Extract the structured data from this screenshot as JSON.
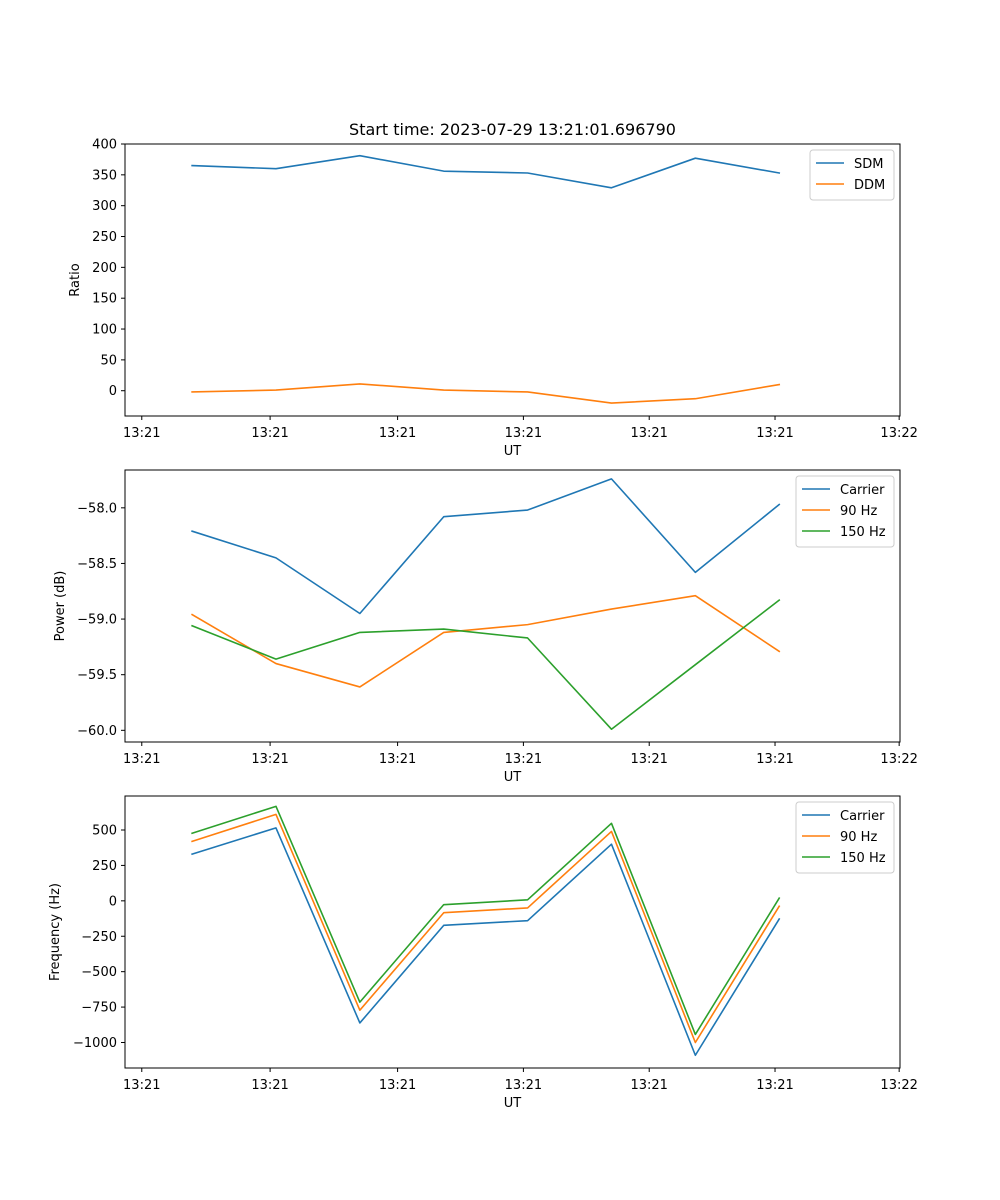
{
  "chart_data": [
    {
      "type": "line",
      "title": "Start time: 2023-07-29 13:21:01.696790",
      "xlabel": "UT",
      "ylabel": "Ratio",
      "x": [
        1,
        2,
        3,
        4,
        5,
        6,
        7,
        8
      ],
      "xlim": [
        0.2,
        9.44
      ],
      "x_ticks": [
        0.4,
        1.93,
        3.45,
        4.95,
        6.45,
        7.95,
        9.43
      ],
      "x_tick_labels": [
        "13:21",
        "13:21",
        "13:21",
        "13:21",
        "13:21",
        "13:21",
        "13:22"
      ],
      "ylim": [
        -41,
        400
      ],
      "y_ticks": [
        0,
        50,
        100,
        150,
        200,
        250,
        300,
        350,
        400
      ],
      "y_tick_labels": [
        "0",
        "50",
        "100",
        "150",
        "200",
        "250",
        "300",
        "350",
        "400"
      ],
      "legend_position": "top-right",
      "series": [
        {
          "name": "SDM",
          "color": "#1f77b4",
          "values": [
            365,
            360,
            381,
            356,
            353,
            329,
            377,
            353
          ]
        },
        {
          "name": "DDM",
          "color": "#ff7f0e",
          "values": [
            -2,
            1,
            11,
            1,
            -2,
            -20,
            -13,
            10
          ]
        }
      ]
    },
    {
      "type": "line",
      "title": "",
      "xlabel": "UT",
      "ylabel": "Power (dB)",
      "x": [
        1,
        2,
        3,
        4,
        5,
        6,
        7,
        8
      ],
      "xlim": [
        0.2,
        9.44
      ],
      "x_ticks": [
        0.4,
        1.93,
        3.45,
        4.95,
        6.45,
        7.95,
        9.43
      ],
      "x_tick_labels": [
        "13:21",
        "13:21",
        "13:21",
        "13:21",
        "13:21",
        "13:21",
        "13:22"
      ],
      "ylim": [
        -60.105,
        -57.66
      ],
      "y_ticks": [
        -60.0,
        -59.5,
        -59.0,
        -58.5,
        -58.0
      ],
      "y_tick_labels": [
        "−60.0",
        "−59.5",
        "−59.0",
        "−58.5",
        "−58.0"
      ],
      "legend_position": "top-right",
      "series": [
        {
          "name": "Carrier",
          "color": "#1f77b4",
          "values": [
            -58.21,
            -58.45,
            -58.95,
            -58.08,
            -58.02,
            -57.74,
            -58.58,
            -57.97
          ]
        },
        {
          "name": "90 Hz",
          "color": "#ff7f0e",
          "values": [
            -58.96,
            -59.4,
            -59.61,
            -59.12,
            -59.05,
            -58.91,
            -58.79,
            -59.29
          ]
        },
        {
          "name": "150 Hz",
          "color": "#2ca02c",
          "values": [
            -59.06,
            -59.36,
            -59.12,
            -59.09,
            -59.17,
            -59.99,
            -59.41,
            -58.83
          ]
        }
      ]
    },
    {
      "type": "line",
      "title": "",
      "xlabel": "UT",
      "ylabel": "Frequency (Hz)",
      "x": [
        1,
        2,
        3,
        4,
        5,
        6,
        7,
        8
      ],
      "xlim": [
        0.2,
        9.44
      ],
      "x_ticks": [
        0.4,
        1.93,
        3.45,
        4.95,
        6.45,
        7.95,
        9.43
      ],
      "x_tick_labels": [
        "13:21",
        "13:21",
        "13:21",
        "13:21",
        "13:21",
        "13:21",
        "13:22"
      ],
      "ylim": [
        -1180,
        740
      ],
      "y_ticks": [
        -1000,
        -750,
        -500,
        -250,
        0,
        250,
        500
      ],
      "y_tick_labels": [
        "−1000",
        "−750",
        "−500",
        "−250",
        "0",
        "250",
        "500"
      ],
      "legend_position": "top-right",
      "series": [
        {
          "name": "Carrier",
          "color": "#1f77b4",
          "values": [
            330,
            515,
            -862,
            -173,
            -140,
            400,
            -1090,
            -128
          ]
        },
        {
          "name": "90 Hz",
          "color": "#ff7f0e",
          "values": [
            420,
            610,
            -772,
            -84,
            -50,
            490,
            -1000,
            -38
          ]
        },
        {
          "name": "150 Hz",
          "color": "#2ca02c",
          "values": [
            477,
            667,
            -715,
            -27,
            7,
            547,
            -943,
            19
          ]
        }
      ]
    }
  ]
}
